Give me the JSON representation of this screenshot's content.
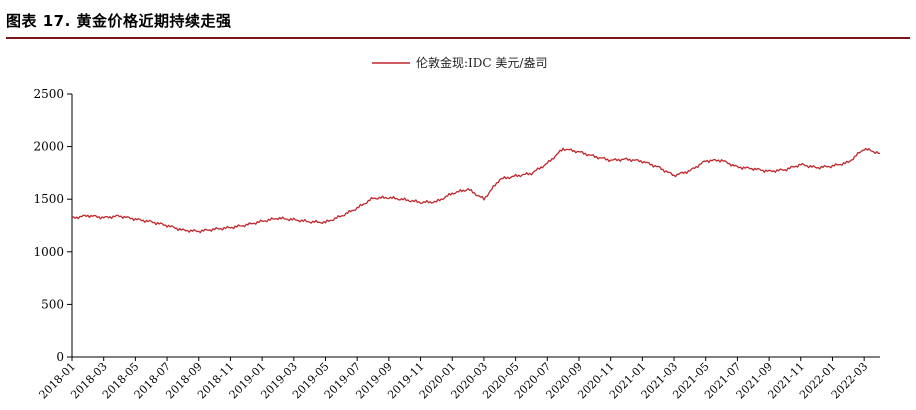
{
  "figure_title": "图表 17. 黄金价格近期持续走强",
  "colors": {
    "series": "#c0272d",
    "axis": "#000000",
    "title_rule": "#7a1418"
  },
  "chart_data": {
    "type": "line",
    "title": "",
    "xlabel": "",
    "ylabel": "",
    "grid": false,
    "legend_position": "top-center",
    "ylim": [
      0,
      2500
    ],
    "y_ticks": [
      0,
      500,
      1000,
      1500,
      2000,
      2500
    ],
    "x_range": [
      "2018-01",
      "2022-04"
    ],
    "x_tick_labels": [
      "2018-01",
      "2018-03",
      "2018-05",
      "2018-07",
      "2018-09",
      "2018-11",
      "2019-01",
      "2019-03",
      "2019-05",
      "2019-07",
      "2019-09",
      "2019-11",
      "2020-01",
      "2020-03",
      "2020-05",
      "2020-07",
      "2020-09",
      "2020-11",
      "2021-01",
      "2021-03",
      "2021-05",
      "2021-07",
      "2021-09",
      "2021-11",
      "2022-01",
      "2022-03"
    ],
    "series": [
      {
        "name": "伦敦金现:IDC 美元/盎司",
        "x": [
          "2018-01",
          "2018-02",
          "2018-03",
          "2018-04",
          "2018-05",
          "2018-06",
          "2018-07",
          "2018-08",
          "2018-09",
          "2018-10",
          "2018-11",
          "2018-12",
          "2019-01",
          "2019-02",
          "2019-03",
          "2019-04",
          "2019-05",
          "2019-06",
          "2019-07",
          "2019-08",
          "2019-09",
          "2019-10",
          "2019-11",
          "2019-12",
          "2020-01",
          "2020-02",
          "2020-03",
          "2020-04",
          "2020-05",
          "2020-06",
          "2020-07",
          "2020-08",
          "2020-09",
          "2020-10",
          "2020-11",
          "2020-12",
          "2021-01",
          "2021-02",
          "2021-03",
          "2021-04",
          "2021-05",
          "2021-06",
          "2021-07",
          "2021-08",
          "2021-09",
          "2021-10",
          "2021-11",
          "2021-12",
          "2022-01",
          "2022-02",
          "2022-03",
          "2022-04"
        ],
        "values": [
          1320,
          1345,
          1325,
          1340,
          1310,
          1285,
          1250,
          1205,
          1195,
          1215,
          1230,
          1255,
          1290,
          1320,
          1305,
          1285,
          1280,
          1340,
          1415,
          1510,
          1515,
          1495,
          1470,
          1475,
          1555,
          1595,
          1500,
          1690,
          1720,
          1745,
          1840,
          1980,
          1950,
          1905,
          1870,
          1880,
          1860,
          1805,
          1725,
          1770,
          1865,
          1870,
          1805,
          1790,
          1765,
          1780,
          1830,
          1800,
          1815,
          1850,
          1980,
          1935
        ]
      }
    ]
  }
}
